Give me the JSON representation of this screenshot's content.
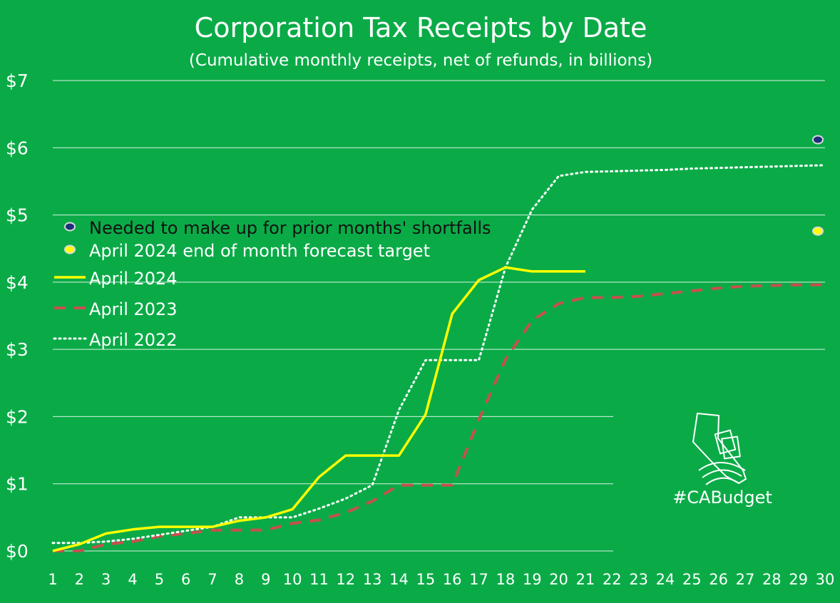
{
  "chart_data": {
    "type": "line",
    "title": "Corporation Tax Receipts by Date",
    "subtitle": "(Cumulative monthly receipts, net of refunds, in billions)",
    "xlabel": "",
    "ylabel": "",
    "x": [
      1,
      2,
      3,
      4,
      5,
      6,
      7,
      8,
      9,
      10,
      11,
      12,
      13,
      14,
      15,
      16,
      17,
      18,
      19,
      20,
      21,
      22,
      23,
      24,
      25,
      26,
      27,
      28,
      29,
      30
    ],
    "xlim": [
      1,
      30
    ],
    "ylim": [
      0,
      7
    ],
    "y_ticks": [
      0,
      1,
      2,
      3,
      4,
      5,
      6,
      7
    ],
    "y_tick_labels": [
      "$0",
      "$1",
      "$2",
      "$3",
      "$4",
      "$5",
      "$6",
      "$7"
    ],
    "x_tick_labels": [
      "1",
      "2",
      "3",
      "4",
      "5",
      "6",
      "7",
      "8",
      "9",
      "10",
      "11",
      "12",
      "13",
      "14",
      "15",
      "16",
      "17",
      "18",
      "19",
      "20",
      "21",
      "22",
      "23",
      "24",
      "25",
      "26",
      "27",
      "28",
      "29",
      "30"
    ],
    "grid": true,
    "legend_position": "center-left",
    "series": [
      {
        "name": "April 2024",
        "style": "solid",
        "color": "#ffff00",
        "x": [
          1,
          2,
          3,
          4,
          5,
          6,
          7,
          8,
          9,
          10,
          11,
          12,
          13,
          14,
          15,
          16,
          17,
          18,
          19,
          20,
          21
        ],
        "y": [
          0.0,
          0.1,
          0.26,
          0.32,
          0.36,
          0.36,
          0.36,
          0.45,
          0.5,
          0.62,
          1.1,
          1.42,
          1.42,
          1.42,
          2.03,
          3.53,
          4.03,
          4.22,
          4.16,
          4.16,
          4.16
        ]
      },
      {
        "name": "April 2023",
        "style": "dashed",
        "color": "#c7504f",
        "x": [
          1,
          2,
          3,
          4,
          5,
          6,
          7,
          8,
          9,
          10,
          11,
          12,
          13,
          14,
          15,
          16,
          17,
          18,
          19,
          20,
          21,
          22,
          23,
          24,
          25,
          26,
          27,
          28,
          29,
          30
        ],
        "y": [
          0.0,
          0.0,
          0.1,
          0.14,
          0.22,
          0.26,
          0.31,
          0.31,
          0.31,
          0.41,
          0.46,
          0.57,
          0.74,
          0.98,
          0.98,
          0.98,
          1.95,
          2.85,
          3.43,
          3.68,
          3.77,
          3.77,
          3.79,
          3.83,
          3.87,
          3.91,
          3.94,
          3.95,
          3.96,
          3.96
        ]
      },
      {
        "name": "April 2022",
        "style": "dotted",
        "color": "#ffffff",
        "x": [
          1,
          2,
          3,
          4,
          5,
          6,
          7,
          8,
          9,
          10,
          11,
          12,
          13,
          14,
          15,
          16,
          17,
          18,
          19,
          20,
          21,
          22,
          23,
          24,
          25,
          26,
          27,
          28,
          29,
          30
        ],
        "y": [
          0.12,
          0.12,
          0.14,
          0.18,
          0.24,
          0.3,
          0.36,
          0.5,
          0.5,
          0.5,
          0.63,
          0.78,
          0.98,
          2.1,
          2.84,
          2.84,
          2.84,
          4.22,
          5.08,
          5.58,
          5.64,
          5.65,
          5.66,
          5.67,
          5.69,
          5.7,
          5.71,
          5.72,
          5.73,
          5.74
        ]
      }
    ],
    "markers": [
      {
        "name": "Needed to make up for prior months' shortfalls",
        "x": 30,
        "y": 6.12,
        "color": "#1d2f7a"
      },
      {
        "name": "April 2024 end of month forecast target",
        "x": 30,
        "y": 4.76,
        "color": "#ffff00"
      }
    ]
  },
  "logo": {
    "text": "#CABudget",
    "icon": "california-budget-icon"
  }
}
